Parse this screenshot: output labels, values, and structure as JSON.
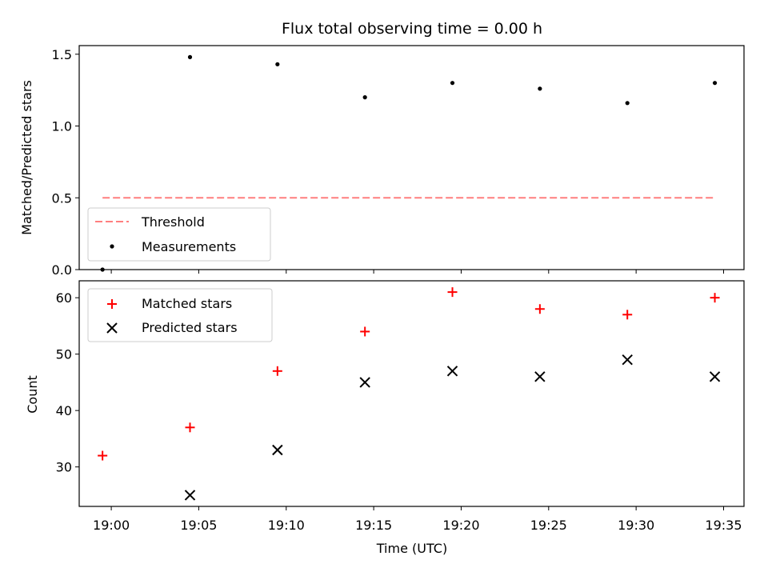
{
  "chart_data": {
    "title": "Flux total observing time = 0.00 h",
    "xlabel": "Time (UTC)",
    "x_ticks": [
      "19:00",
      "19:05",
      "19:10",
      "19:15",
      "19:20",
      "19:25",
      "19:30",
      "19:35"
    ],
    "x_range": [
      "18:58:10",
      "19:36:10"
    ],
    "x": [
      "18:59:30",
      "19:04:30",
      "19:09:30",
      "19:14:30",
      "19:19:30",
      "19:24:30",
      "19:29:30",
      "19:34:30"
    ],
    "panels": [
      {
        "type": "scatter",
        "ylabel": "Matched/Predicted stars",
        "ylim": [
          0,
          1.56
        ],
        "y_ticks": [
          "0.0",
          "0.5",
          "1.0",
          "1.5"
        ],
        "y_tick_values": [
          0,
          0.5,
          1.0,
          1.5
        ],
        "legend_position": "lower-left",
        "series": [
          {
            "name": "Threshold",
            "kind": "line",
            "style": "dashed",
            "color": "#ff7f7f",
            "values": [
              0.5,
              0.5,
              0.5,
              0.5,
              0.5,
              0.5,
              0.5,
              0.5
            ]
          },
          {
            "name": "Measurements",
            "kind": "point",
            "color": "#000000",
            "values": [
              0.0,
              1.48,
              1.43,
              1.2,
              1.3,
              1.26,
              1.16,
              1.3
            ]
          }
        ]
      },
      {
        "type": "scatter",
        "ylabel": "Count",
        "ylim": [
          23,
          63
        ],
        "y_ticks": [
          "30",
          "40",
          "50",
          "60"
        ],
        "y_tick_values": [
          30,
          40,
          50,
          60
        ],
        "legend_position": "upper-left",
        "series": [
          {
            "name": "Matched stars",
            "kind": "plus",
            "color": "#ff0000",
            "values": [
              32,
              37,
              47,
              54,
              61,
              58,
              57,
              60
            ]
          },
          {
            "name": "Predicted stars",
            "kind": "x",
            "color": "#000000",
            "values": [
              null,
              25,
              33,
              45,
              47,
              46,
              49,
              46
            ]
          }
        ]
      }
    ]
  }
}
